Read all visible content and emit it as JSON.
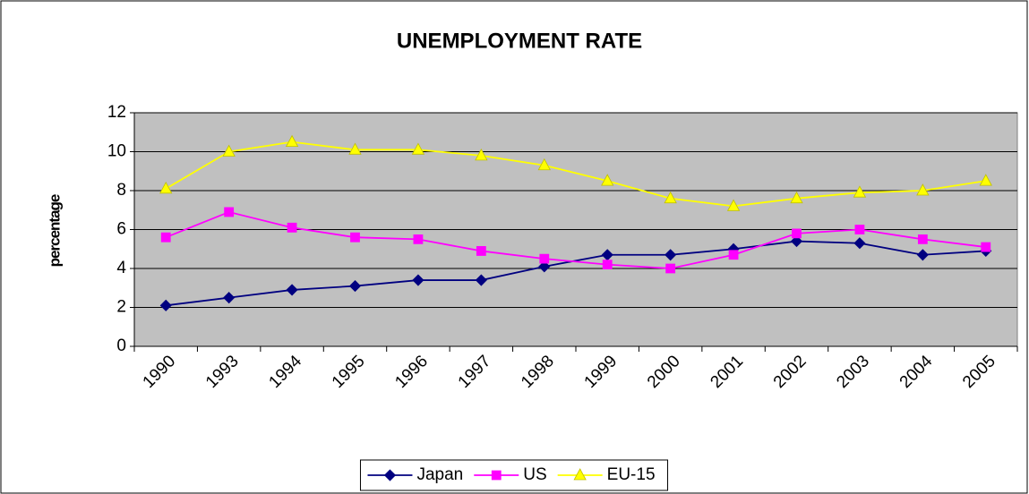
{
  "chart_data": {
    "type": "line",
    "title": "UNEMPLOYMENT RATE",
    "y_label": "percentage",
    "categories": [
      "1990",
      "1993",
      "1994",
      "1995",
      "1996",
      "1997",
      "1998",
      "1999",
      "2000",
      "2001",
      "2002",
      "2003",
      "2004",
      "2005"
    ],
    "series": [
      {
        "name": "Japan",
        "color": "#000080",
        "marker": "diamond",
        "values": [
          2.1,
          2.5,
          2.9,
          3.1,
          3.4,
          3.4,
          4.1,
          4.7,
          4.7,
          5.0,
          5.4,
          5.3,
          4.7,
          4.9
        ]
      },
      {
        "name": "US",
        "color": "#ff00ff",
        "marker": "square",
        "values": [
          5.6,
          6.9,
          6.1,
          5.6,
          5.5,
          4.9,
          4.5,
          4.2,
          4.0,
          4.7,
          5.8,
          6.0,
          5.5,
          5.1
        ]
      },
      {
        "name": "EU-15",
        "color": "#ffff00",
        "marker": "triangle",
        "values": [
          8.1,
          10.0,
          10.5,
          10.1,
          10.1,
          9.8,
          9.3,
          8.5,
          7.6,
          7.2,
          7.6,
          7.9,
          8.0,
          8.5
        ]
      }
    ],
    "ylim": [
      0,
      12
    ],
    "yticks": [
      0,
      2,
      4,
      6,
      8,
      10,
      12
    ],
    "grid": true,
    "legend": "bottom"
  }
}
